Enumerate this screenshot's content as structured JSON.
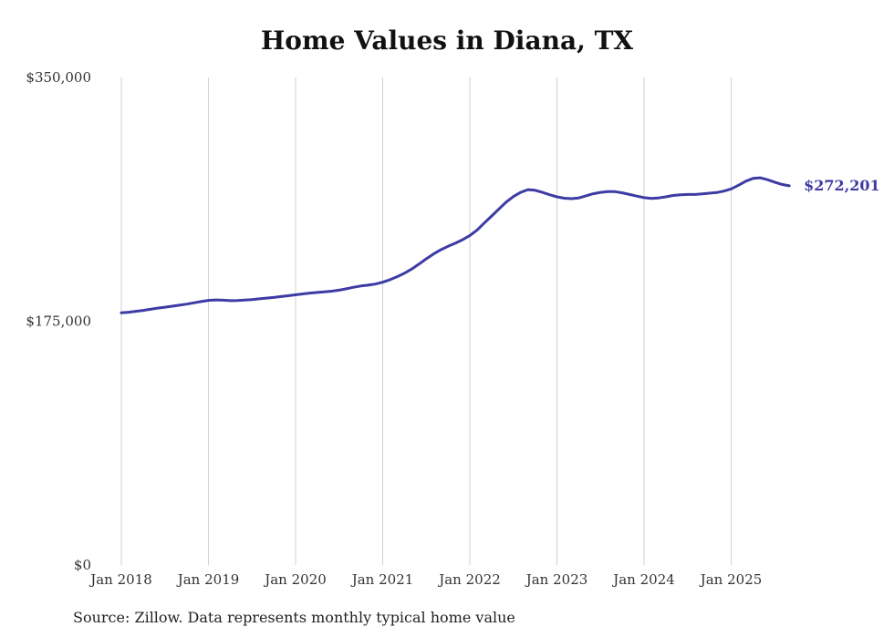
{
  "chart_data": {
    "type": "line",
    "title": "Home Values in Diana, TX",
    "source": "Source: Zillow. Data represents monthly typical home value",
    "x": [
      "2018-01",
      "2018-02",
      "2018-03",
      "2018-04",
      "2018-05",
      "2018-06",
      "2018-07",
      "2018-08",
      "2018-09",
      "2018-10",
      "2018-11",
      "2018-12",
      "2019-01",
      "2019-02",
      "2019-03",
      "2019-04",
      "2019-05",
      "2019-06",
      "2019-07",
      "2019-08",
      "2019-09",
      "2019-10",
      "2019-11",
      "2019-12",
      "2020-01",
      "2020-02",
      "2020-03",
      "2020-04",
      "2020-05",
      "2020-06",
      "2020-07",
      "2020-08",
      "2020-09",
      "2020-10",
      "2020-11",
      "2020-12",
      "2021-01",
      "2021-02",
      "2021-03",
      "2021-04",
      "2021-05",
      "2021-06",
      "2021-07",
      "2021-08",
      "2021-09",
      "2021-10",
      "2021-11",
      "2021-12",
      "2022-01",
      "2022-02",
      "2022-03",
      "2022-04",
      "2022-05",
      "2022-06",
      "2022-07",
      "2022-08",
      "2022-09",
      "2022-10",
      "2022-11",
      "2022-12",
      "2023-01",
      "2023-02",
      "2023-03",
      "2023-04",
      "2023-05",
      "2023-06",
      "2023-07",
      "2023-08",
      "2023-09",
      "2023-10",
      "2023-11",
      "2023-12",
      "2024-01",
      "2024-02",
      "2024-03",
      "2024-04",
      "2024-05",
      "2024-06",
      "2024-07",
      "2024-08",
      "2024-09",
      "2024-10",
      "2024-11",
      "2024-12",
      "2025-01",
      "2025-02",
      "2025-03",
      "2025-04",
      "2025-05",
      "2025-06",
      "2025-07",
      "2025-08",
      "2025-09"
    ],
    "values": [
      181000,
      181500,
      182100,
      182800,
      183600,
      184400,
      185100,
      185800,
      186500,
      187300,
      188200,
      189100,
      190000,
      190300,
      190100,
      189800,
      189900,
      190200,
      190600,
      191100,
      191600,
      192100,
      192700,
      193300,
      194000,
      194600,
      195200,
      195700,
      196100,
      196600,
      197300,
      198300,
      199400,
      200300,
      200900,
      201700,
      203000,
      204800,
      207000,
      209500,
      212500,
      216000,
      219800,
      223300,
      226300,
      228800,
      231000,
      233500,
      236500,
      240500,
      245500,
      250500,
      255500,
      260500,
      264500,
      267500,
      269500,
      269000,
      267500,
      265800,
      264300,
      263300,
      263000,
      263500,
      265000,
      266500,
      267500,
      268000,
      268000,
      267200,
      266000,
      264800,
      263700,
      263200,
      263500,
      264300,
      265300,
      265800,
      266000,
      266000,
      266400,
      266900,
      267400,
      268400,
      270000,
      272600,
      275500,
      277500,
      278000,
      276600,
      274800,
      273200,
      272201
    ],
    "x_tick_labels": [
      "Jan 2018",
      "Jan 2019",
      "Jan 2020",
      "Jan 2021",
      "Jan 2022",
      "Jan 2023",
      "Jan 2024",
      "Jan 2025"
    ],
    "y_ticks": [
      0,
      175000,
      350000
    ],
    "y_tick_labels": [
      "$0",
      "$175,000",
      "$350,000"
    ],
    "ylim": [
      0,
      350000
    ],
    "end_label": "$272,201",
    "line_color": "#3d3ba4",
    "grid": "vertical-only",
    "legend": "none"
  }
}
